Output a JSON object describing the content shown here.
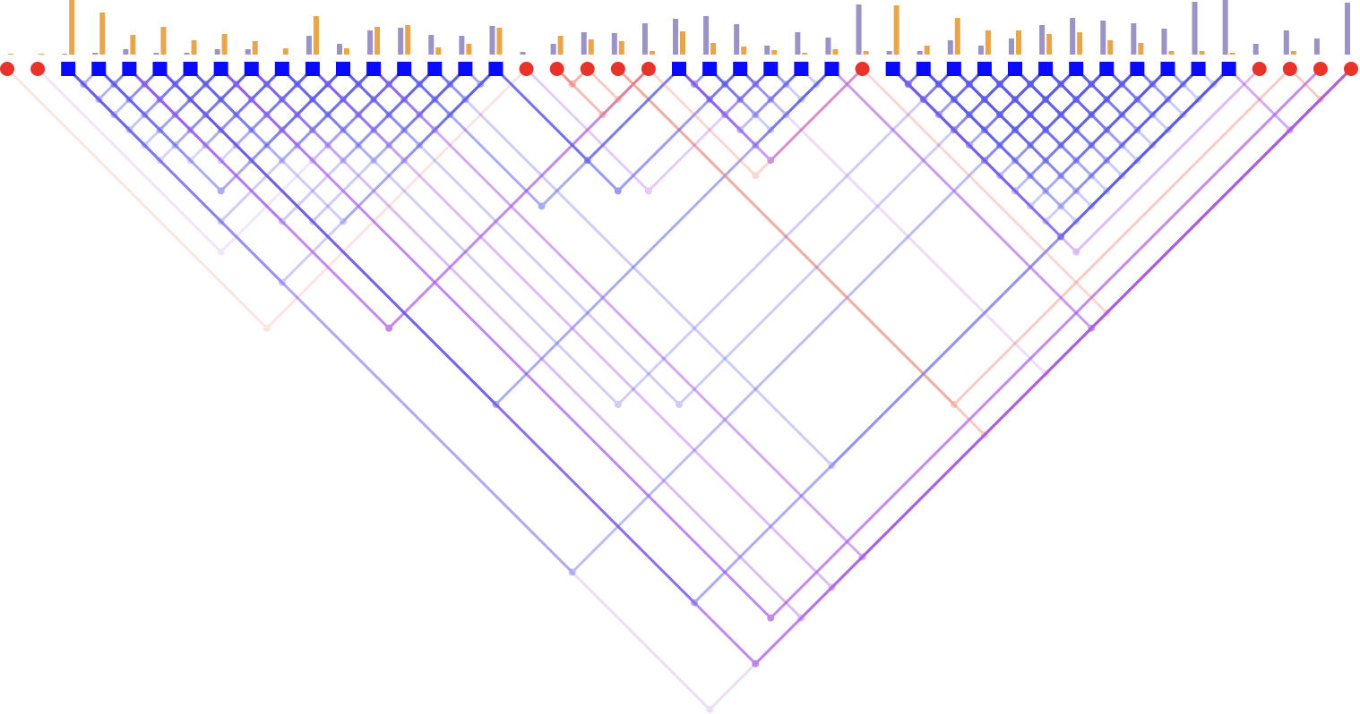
{
  "chart_data": {
    "type": "linkage",
    "node_shapes": [
      "circle",
      "circle",
      "square",
      "square",
      "square",
      "square",
      "square",
      "square",
      "square",
      "square",
      "square",
      "square",
      "square",
      "square",
      "square",
      "square",
      "square",
      "circle",
      "circle",
      "circle",
      "circle",
      "circle",
      "square",
      "square",
      "square",
      "square",
      "square",
      "square",
      "circle",
      "square",
      "square",
      "square",
      "square",
      "square",
      "square",
      "square",
      "square",
      "square",
      "square",
      "square",
      "square",
      "circle",
      "circle",
      "circle",
      "circle"
    ],
    "node_colors": {
      "circle": "#e8332a",
      "square": "#0a0aff"
    },
    "link_colors": {
      "circle-circle": "#ee7f6f",
      "square-square": "#5b5be8",
      "mixed": "#a95ae8"
    },
    "ylim": [
      0,
      61
    ],
    "bars": [
      {
        "color": "#9b93c6",
        "values": [
          0,
          0,
          1,
          2,
          6,
          2,
          2,
          6,
          6,
          0,
          21,
          12,
          27,
          30,
          22,
          21,
          32,
          3,
          12,
          25,
          24,
          35,
          40,
          43,
          34,
          10,
          25,
          19,
          56,
          4,
          4,
          16,
          10,
          18,
          33,
          41,
          38,
          35,
          29,
          59,
          61,
          12,
          27,
          18,
          58
        ]
      },
      {
        "color": "#e8a54b",
        "values": [
          1,
          1,
          61,
          47,
          22,
          31,
          16,
          23,
          15,
          7,
          43,
          7,
          31,
          33,
          8,
          12,
          30,
          0,
          21,
          17,
          15,
          4,
          26,
          13,
          9,
          5,
          2,
          6,
          4,
          55,
          10,
          41,
          27,
          27,
          23,
          25,
          16,
          13,
          4,
          4,
          2,
          0,
          4,
          0,
          0
        ]
      }
    ],
    "links": [
      [
        29,
        30,
        0.8
      ],
      [
        29,
        31,
        0.7
      ],
      [
        29,
        32,
        0.6
      ],
      [
        29,
        33,
        0.6
      ],
      [
        29,
        34,
        0.5
      ],
      [
        29,
        35,
        0.5
      ],
      [
        29,
        36,
        0.4
      ],
      [
        29,
        37,
        0.4
      ],
      [
        29,
        38,
        0.3
      ],
      [
        29,
        39,
        0.3
      ],
      [
        29,
        40,
        0.7
      ],
      [
        30,
        31,
        0.8
      ],
      [
        30,
        32,
        0.7
      ],
      [
        30,
        33,
        0.6
      ],
      [
        30,
        34,
        0.6
      ],
      [
        30,
        35,
        0.5
      ],
      [
        30,
        36,
        0.4
      ],
      [
        30,
        37,
        0.4
      ],
      [
        30,
        38,
        0.3
      ],
      [
        30,
        39,
        0.3
      ],
      [
        30,
        40,
        0.3
      ],
      [
        31,
        32,
        0.8
      ],
      [
        31,
        33,
        0.7
      ],
      [
        31,
        34,
        0.7
      ],
      [
        31,
        35,
        0.6
      ],
      [
        31,
        36,
        0.5
      ],
      [
        31,
        37,
        0.4
      ],
      [
        31,
        38,
        0.4
      ],
      [
        31,
        39,
        0.3
      ],
      [
        31,
        40,
        0.3
      ],
      [
        32,
        33,
        0.8
      ],
      [
        32,
        34,
        0.7
      ],
      [
        32,
        35,
        0.6
      ],
      [
        32,
        36,
        0.6
      ],
      [
        32,
        37,
        0.5
      ],
      [
        32,
        38,
        0.4
      ],
      [
        32,
        39,
        0.3
      ],
      [
        32,
        40,
        0.3
      ],
      [
        33,
        34,
        0.8
      ],
      [
        33,
        35,
        0.7
      ],
      [
        33,
        36,
        0.6
      ],
      [
        33,
        37,
        0.5
      ],
      [
        33,
        38,
        0.5
      ],
      [
        33,
        39,
        0.4
      ],
      [
        33,
        40,
        0.3
      ],
      [
        34,
        35,
        0.7
      ],
      [
        34,
        36,
        0.7
      ],
      [
        34,
        37,
        0.6
      ],
      [
        34,
        38,
        0.5
      ],
      [
        34,
        39,
        0.4
      ],
      [
        34,
        40,
        0.3
      ],
      [
        35,
        36,
        0.7
      ],
      [
        35,
        37,
        0.6
      ],
      [
        35,
        38,
        0.5
      ],
      [
        35,
        39,
        0.4
      ],
      [
        35,
        40,
        0.3
      ],
      [
        36,
        37,
        0.6
      ],
      [
        36,
        38,
        0.5
      ],
      [
        36,
        39,
        0.4
      ],
      [
        36,
        40,
        0.3
      ],
      [
        37,
        38,
        0.5
      ],
      [
        37,
        39,
        0.4
      ],
      [
        37,
        40,
        0.3
      ],
      [
        38,
        39,
        0.4
      ],
      [
        38,
        40,
        0.3
      ],
      [
        39,
        40,
        0.3
      ],
      [
        22,
        23,
        0.6
      ],
      [
        22,
        24,
        0.5
      ],
      [
        22,
        25,
        0.5
      ],
      [
        22,
        26,
        0.4
      ],
      [
        22,
        27,
        0.4
      ],
      [
        23,
        24,
        0.6
      ],
      [
        23,
        25,
        0.5
      ],
      [
        23,
        26,
        0.4
      ],
      [
        23,
        27,
        0.3
      ],
      [
        24,
        25,
        0.5
      ],
      [
        24,
        26,
        0.4
      ],
      [
        24,
        27,
        0.3
      ],
      [
        25,
        26,
        0.4
      ],
      [
        25,
        27,
        0.3
      ],
      [
        26,
        27,
        0.3
      ],
      [
        2,
        3,
        0.5
      ],
      [
        2,
        4,
        0.45
      ],
      [
        2,
        5,
        0.4
      ],
      [
        2,
        6,
        0.35
      ],
      [
        2,
        7,
        0.3
      ],
      [
        2,
        8,
        0.25
      ],
      [
        3,
        4,
        0.5
      ],
      [
        3,
        5,
        0.45
      ],
      [
        3,
        6,
        0.4
      ],
      [
        3,
        7,
        0.35
      ],
      [
        3,
        8,
        0.3
      ],
      [
        3,
        9,
        0.25
      ],
      [
        4,
        5,
        0.5
      ],
      [
        4,
        6,
        0.45
      ],
      [
        4,
        7,
        0.4
      ],
      [
        4,
        8,
        0.35
      ],
      [
        4,
        9,
        0.3
      ],
      [
        4,
        10,
        0.25
      ],
      [
        5,
        6,
        0.5
      ],
      [
        5,
        7,
        0.45
      ],
      [
        5,
        8,
        0.4
      ],
      [
        5,
        9,
        0.35
      ],
      [
        5,
        10,
        0.3
      ],
      [
        5,
        11,
        0.25
      ],
      [
        6,
        7,
        0.5
      ],
      [
        6,
        8,
        0.45
      ],
      [
        6,
        9,
        0.4
      ],
      [
        6,
        10,
        0.35
      ],
      [
        6,
        11,
        0.3
      ],
      [
        6,
        12,
        0.25
      ],
      [
        7,
        8,
        0.5
      ],
      [
        7,
        9,
        0.45
      ],
      [
        7,
        10,
        0.4
      ],
      [
        7,
        11,
        0.35
      ],
      [
        7,
        12,
        0.3
      ],
      [
        7,
        13,
        0.25
      ],
      [
        8,
        9,
        0.5
      ],
      [
        8,
        10,
        0.45
      ],
      [
        8,
        11,
        0.4
      ],
      [
        8,
        12,
        0.35
      ],
      [
        8,
        13,
        0.3
      ],
      [
        8,
        14,
        0.25
      ],
      [
        9,
        10,
        0.5
      ],
      [
        9,
        11,
        0.45
      ],
      [
        9,
        12,
        0.4
      ],
      [
        9,
        13,
        0.35
      ],
      [
        9,
        14,
        0.3
      ],
      [
        9,
        15,
        0.25
      ],
      [
        10,
        11,
        0.5
      ],
      [
        10,
        12,
        0.45
      ],
      [
        10,
        13,
        0.4
      ],
      [
        10,
        14,
        0.35
      ],
      [
        10,
        15,
        0.3
      ],
      [
        10,
        16,
        0.25
      ],
      [
        11,
        12,
        0.5
      ],
      [
        11,
        13,
        0.45
      ],
      [
        11,
        14,
        0.4
      ],
      [
        11,
        15,
        0.35
      ],
      [
        11,
        16,
        0.3
      ],
      [
        12,
        13,
        0.5
      ],
      [
        12,
        14,
        0.45
      ],
      [
        12,
        15,
        0.4
      ],
      [
        12,
        16,
        0.35
      ],
      [
        13,
        14,
        0.5
      ],
      [
        13,
        15,
        0.45
      ],
      [
        13,
        16,
        0.4
      ],
      [
        14,
        15,
        0.5
      ],
      [
        14,
        16,
        0.45
      ],
      [
        15,
        16,
        0.5
      ],
      [
        2,
        16,
        0.3
      ],
      [
        3,
        11,
        0.5
      ],
      [
        2,
        12,
        0.3
      ],
      [
        4,
        14,
        0.3
      ],
      [
        5,
        15,
        0.3
      ],
      [
        6,
        16,
        0.3
      ],
      [
        0,
        17,
        0.2
      ],
      [
        4,
        21,
        0.7
      ],
      [
        2,
        44,
        0.2
      ],
      [
        5,
        44,
        0.7
      ],
      [
        7,
        43,
        0.7
      ],
      [
        5,
        27,
        0.5
      ],
      [
        5,
        40,
        0.5
      ],
      [
        2,
        35,
        0.4
      ],
      [
        28,
        44,
        0.3
      ],
      [
        20,
        44,
        0.4
      ],
      [
        20,
        42,
        0.4
      ],
      [
        12,
        44,
        0.5
      ],
      [
        10,
        44,
        0.4
      ],
      [
        8,
        44,
        0.4
      ],
      [
        22,
        28,
        0.6
      ],
      [
        16,
        22,
        0.6
      ],
      [
        16,
        24,
        0.6
      ],
      [
        18,
        21,
        0.5
      ],
      [
        18,
        19,
        0.6
      ],
      [
        13,
        22,
        0.5
      ],
      [
        27,
        44,
        0.6
      ],
      [
        29,
        41,
        0.4
      ],
      [
        42,
        44,
        0.4
      ],
      [
        40,
        44,
        0.5
      ],
      [
        19,
        21,
        0.4
      ],
      [
        21,
        28,
        0.3
      ],
      [
        17,
        25,
        0.3
      ],
      [
        9,
        31,
        0.3
      ],
      [
        14,
        40,
        0.3
      ],
      [
        11,
        33,
        0.3
      ],
      [
        24,
        44,
        0.2
      ],
      [
        1,
        13,
        0.15
      ]
    ]
  }
}
